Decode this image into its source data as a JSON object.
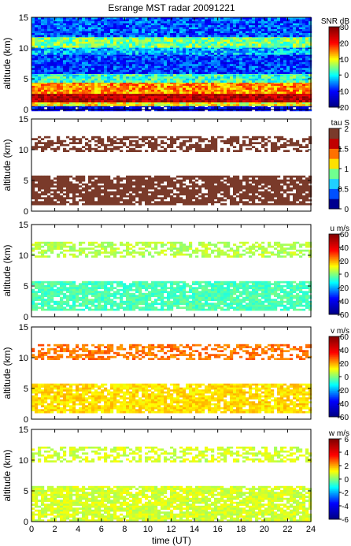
{
  "title": "Esrange MST radar 20091221",
  "chart_data": [
    {
      "type": "heatmap",
      "quantity": "SNR",
      "colorbar_label": "SNR dB",
      "clim": [
        -20,
        30
      ],
      "colorbar_ticks": [
        -20,
        -10,
        0,
        10,
        20,
        30
      ],
      "xlim": [
        0,
        24
      ],
      "ylim": [
        0,
        15
      ],
      "ylabel": "altitude (km)",
      "yticks": [
        0,
        5,
        10,
        15
      ],
      "xticks": [
        0,
        2,
        4,
        6,
        8,
        10,
        12,
        14,
        16,
        18,
        20,
        22,
        24
      ],
      "layers": [
        {
          "alt": [
            0,
            0.7
          ],
          "value": -12,
          "coverage": 0.9
        },
        {
          "alt": [
            0.7,
            1.2
          ],
          "value": 10,
          "coverage": 1
        },
        {
          "alt": [
            1.2,
            2.8
          ],
          "value": 26,
          "coverage": 1
        },
        {
          "alt": [
            2.8,
            4.5
          ],
          "value": 14,
          "coverage": 1
        },
        {
          "alt": [
            4.5,
            6.0
          ],
          "value": 2,
          "coverage": 1
        },
        {
          "alt": [
            6.0,
            9.0
          ],
          "value": -8,
          "coverage": 1
        },
        {
          "alt": [
            9.0,
            10.2
          ],
          "value": -3,
          "coverage": 1
        },
        {
          "alt": [
            10.2,
            12.0
          ],
          "value": 5,
          "coverage": 1
        },
        {
          "alt": [
            12.0,
            15.0
          ],
          "value": -7,
          "coverage": 1
        }
      ]
    },
    {
      "type": "heatmap",
      "quantity": "tau",
      "colorbar_label": "tau S",
      "clim": [
        0,
        2
      ],
      "colorbar_ticks": [
        0,
        0.5,
        1,
        1.5,
        2
      ],
      "xlim": [
        0,
        24
      ],
      "ylim": [
        0,
        15
      ],
      "ylabel": "altitude (km)",
      "yticks": [
        0,
        5,
        10,
        15
      ],
      "xticks": [
        0,
        2,
        4,
        6,
        8,
        10,
        12,
        14,
        16,
        18,
        20,
        22,
        24
      ],
      "layers": [
        {
          "alt": [
            1.2,
            5.8
          ],
          "value": 2,
          "coverage": 0.82
        },
        {
          "alt": [
            9.8,
            12.2
          ],
          "value": 2,
          "coverage": 0.55
        }
      ]
    },
    {
      "type": "heatmap",
      "quantity": "u",
      "colorbar_label": "u m/s",
      "clim": [
        -60,
        60
      ],
      "colorbar_ticks": [
        -60,
        -40,
        -20,
        0,
        20,
        40,
        60
      ],
      "xlim": [
        0,
        24
      ],
      "ylim": [
        0,
        15
      ],
      "ylabel": "altitude (km)",
      "yticks": [
        0,
        5,
        10,
        15
      ],
      "xticks": [
        0,
        2,
        4,
        6,
        8,
        10,
        12,
        14,
        16,
        18,
        20,
        22,
        24
      ],
      "layers": [
        {
          "alt": [
            1.2,
            5.8
          ],
          "value": -5,
          "coverage": 0.85
        },
        {
          "alt": [
            9.8,
            12.2
          ],
          "value": 5,
          "coverage": 0.55
        }
      ]
    },
    {
      "type": "heatmap",
      "quantity": "v",
      "colorbar_label": "v m/s",
      "clim": [
        -60,
        60
      ],
      "colorbar_ticks": [
        -60,
        -40,
        -20,
        0,
        20,
        40,
        60
      ],
      "xlim": [
        0,
        24
      ],
      "ylim": [
        0,
        15
      ],
      "ylabel": "altitude (km)",
      "yticks": [
        0,
        5,
        10,
        15
      ],
      "xticks": [
        0,
        2,
        4,
        6,
        8,
        10,
        12,
        14,
        16,
        18,
        20,
        22,
        24
      ],
      "layers": [
        {
          "alt": [
            1.2,
            5.8
          ],
          "value": 15,
          "coverage": 0.85
        },
        {
          "alt": [
            9.8,
            12.2
          ],
          "value": 25,
          "coverage": 0.55
        }
      ]
    },
    {
      "type": "heatmap",
      "quantity": "w",
      "colorbar_label": "w m/s",
      "clim": [
        -6,
        6
      ],
      "colorbar_ticks": [
        -6,
        -4,
        -2,
        0,
        2,
        4,
        6
      ],
      "xlim": [
        0,
        24
      ],
      "ylim": [
        0,
        15
      ],
      "ylabel": "altitude (km)",
      "yticks": [
        0,
        5,
        10,
        15
      ],
      "xticks": [
        0,
        2,
        4,
        6,
        8,
        10,
        12,
        14,
        16,
        18,
        20,
        22,
        24
      ],
      "xlabel": "time (UT)",
      "layers": [
        {
          "alt": [
            0.3,
            5.8
          ],
          "value": 0.8,
          "coverage": 0.85
        },
        {
          "alt": [
            9.8,
            12.2
          ],
          "value": 0.8,
          "coverage": 0.55
        }
      ]
    }
  ]
}
